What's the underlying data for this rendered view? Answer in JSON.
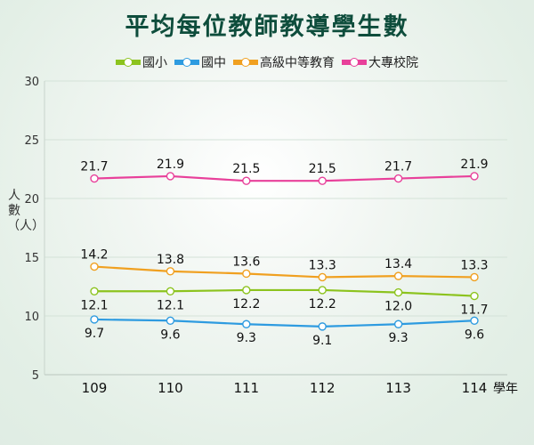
{
  "title": "平均每位教師教導學生數",
  "legend": [
    {
      "label": "國小",
      "color": "#8cc31e"
    },
    {
      "label": "國中",
      "color": "#2e9be0"
    },
    {
      "label": "高級中等教育",
      "color": "#f0a020"
    },
    {
      "label": "大專校院",
      "color": "#e8409a"
    }
  ],
  "y_axis": {
    "label": "人數（人）",
    "ticks": [
      "30",
      "25",
      "20",
      "15",
      "10",
      "5"
    ]
  },
  "x_axis": {
    "ticks": [
      "109",
      "110",
      "111",
      "112",
      "113",
      "114"
    ],
    "unit": "學年"
  },
  "chart_data": {
    "type": "line",
    "title": "平均每位教師教導學生數",
    "xlabel": "學年",
    "ylabel": "人數（人）",
    "categories": [
      "109",
      "110",
      "111",
      "112",
      "113",
      "114"
    ],
    "ylim": [
      5,
      30
    ],
    "grid": true,
    "legend_position": "top",
    "series": [
      {
        "name": "國小",
        "values": [
          12.1,
          12.1,
          12.2,
          12.2,
          12.0,
          11.7
        ],
        "color": "#8cc31e"
      },
      {
        "name": "國中",
        "values": [
          9.7,
          9.6,
          9.3,
          9.1,
          9.3,
          9.6
        ],
        "color": "#2e9be0"
      },
      {
        "name": "高級中等教育",
        "values": [
          14.2,
          13.8,
          13.6,
          13.3,
          13.4,
          13.3
        ],
        "color": "#f0a020"
      },
      {
        "name": "大專校院",
        "values": [
          21.7,
          21.9,
          21.5,
          21.5,
          21.7,
          21.9
        ],
        "color": "#e8409a"
      }
    ]
  }
}
